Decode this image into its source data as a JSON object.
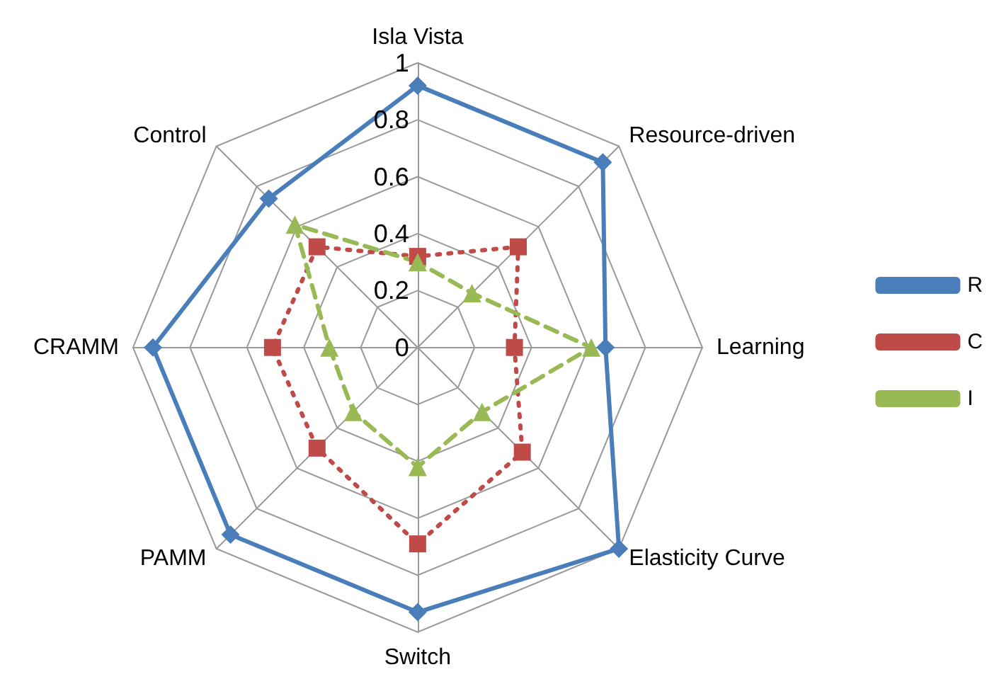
{
  "chart_data": {
    "type": "radar",
    "categories": [
      "Isla Vista",
      "Resource-driven",
      "Learning",
      "Elasticity Curve",
      "Switch",
      "PAMM",
      "CRAMM",
      "Control"
    ],
    "ylim": [
      0,
      1
    ],
    "yticks": [
      0,
      0.2,
      0.4,
      0.6,
      0.8,
      1
    ],
    "grid": true,
    "legend": "right",
    "series": [
      {
        "name": "R",
        "color": "#4a7ebb",
        "marker": "diamond",
        "line_style": "solid",
        "values": [
          0.92,
          0.92,
          0.66,
          1.0,
          0.93,
          0.93,
          0.93,
          0.74
        ]
      },
      {
        "name": "C",
        "color": "#be4b48",
        "marker": "square",
        "line_style": "dotted",
        "values": [
          0.32,
          0.5,
          0.34,
          0.52,
          0.69,
          0.5,
          0.51,
          0.5
        ]
      },
      {
        "name": "I",
        "color": "#98b954",
        "marker": "triangle",
        "line_style": "dashed",
        "values": [
          0.3,
          0.27,
          0.61,
          0.32,
          0.42,
          0.32,
          0.31,
          0.61
        ]
      }
    ]
  }
}
